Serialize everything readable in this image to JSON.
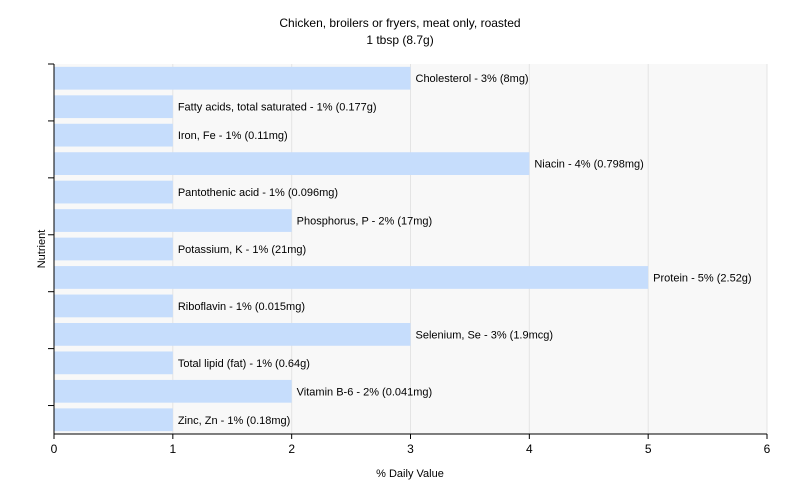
{
  "chart_data": {
    "type": "bar",
    "orientation": "horizontal",
    "title": "Chicken, broilers or fryers, meat only, roasted",
    "subtitle": "1 tbsp (8.7g)",
    "xlabel": "% Daily Value",
    "ylabel": "Nutrient",
    "xlim": [
      0,
      6
    ],
    "xticks": [
      "0",
      "1",
      "2",
      "3",
      "4",
      "5",
      "6"
    ],
    "grid": true,
    "bar_color": "#c6ddfc",
    "categories": [
      "Cholesterol",
      "Fatty acids, total saturated",
      "Iron, Fe",
      "Niacin",
      "Pantothenic acid",
      "Phosphorus, P",
      "Potassium, K",
      "Protein",
      "Riboflavin",
      "Selenium, Se",
      "Total lipid (fat)",
      "Vitamin B-6",
      "Zinc, Zn"
    ],
    "values": [
      3,
      1,
      1,
      4,
      1,
      2,
      1,
      5,
      1,
      3,
      1,
      2,
      1
    ],
    "labels": [
      "Cholesterol - 3% (8mg)",
      "Fatty acids, total saturated - 1% (0.177g)",
      "Iron, Fe - 1% (0.11mg)",
      "Niacin - 4% (0.798mg)",
      "Pantothenic acid - 1% (0.096mg)",
      "Phosphorus, P - 2% (17mg)",
      "Potassium, K - 1% (21mg)",
      "Protein - 5% (2.52g)",
      "Riboflavin - 1% (0.015mg)",
      "Selenium, Se - 3% (1.9mcg)",
      "Total lipid (fat) - 1% (0.64g)",
      "Vitamin B-6 - 2% (0.041mg)",
      "Zinc, Zn - 1% (0.18mg)"
    ]
  }
}
